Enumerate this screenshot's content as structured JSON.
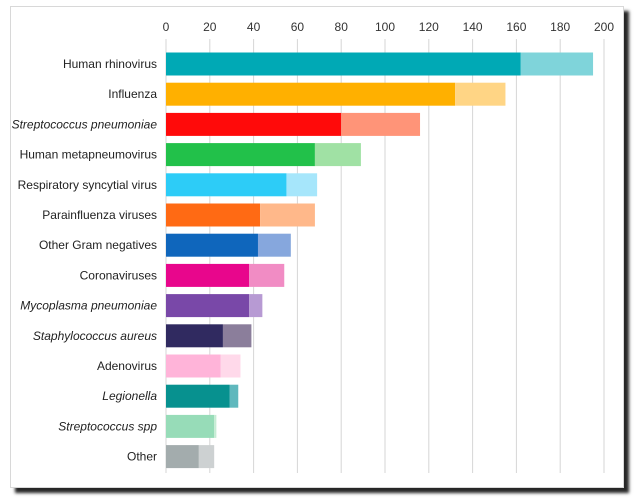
{
  "chart_data": {
    "type": "bar",
    "orientation": "horizontal",
    "stacked": true,
    "title": "",
    "xlabel": "",
    "ylabel": "",
    "xlim": [
      0,
      200
    ],
    "xticks": [
      0,
      20,
      40,
      60,
      80,
      100,
      120,
      140,
      160,
      180,
      200
    ],
    "grid": "vertical",
    "legend": "none",
    "categories": [
      "Human rhinovirus",
      "Influenza",
      "Streptococcus pneumoniae",
      "Human metapneumovirus",
      "Respiratory syncytial virus",
      "Parainfluenza viruses",
      "Other Gram negatives",
      "Coronaviruses",
      "Mycoplasma pneumoniae",
      "Staphylococcus aureus",
      "Adenovirus",
      "Legionella",
      "Streptococcus spp",
      "Other"
    ],
    "italic_categories": [
      "Streptococcus pneumoniae",
      "Mycoplasma pneumoniae",
      "Staphylococcus aureus",
      "Legionella",
      "Streptococcus spp"
    ],
    "series": [
      {
        "values": [
          162,
          132,
          80,
          68,
          55,
          43,
          42,
          38,
          38,
          26,
          25,
          29,
          22,
          15
        ]
      },
      {
        "values": [
          33,
          23,
          36,
          21,
          14,
          25,
          15,
          16,
          6,
          13,
          9,
          4,
          1,
          7
        ]
      }
    ],
    "colors": [
      [
        "#00a9b5",
        "#7fd4da"
      ],
      [
        "#ffb000",
        "#ffd585"
      ],
      [
        "#ff0a0a",
        "#ff9478"
      ],
      [
        "#22c14a",
        "#a0e1a4"
      ],
      [
        "#2dccf7",
        "#a6e6fb"
      ],
      [
        "#ff6a14",
        "#ffb88a"
      ],
      [
        "#0f66bc",
        "#86a7dd"
      ],
      [
        "#e8068c",
        "#f18cc4"
      ],
      [
        "#7948a8",
        "#b79ad3"
      ],
      [
        "#302a60",
        "#8b7e9b"
      ],
      [
        "#ffb4d9",
        "#ffd9ea"
      ],
      [
        "#07918f",
        "#5fb8bd"
      ],
      [
        "#97dcb8",
        "#c6ecd4"
      ],
      [
        "#a3acad",
        "#cdd1d2"
      ]
    ],
    "grid_color": "#d6d6d6"
  }
}
